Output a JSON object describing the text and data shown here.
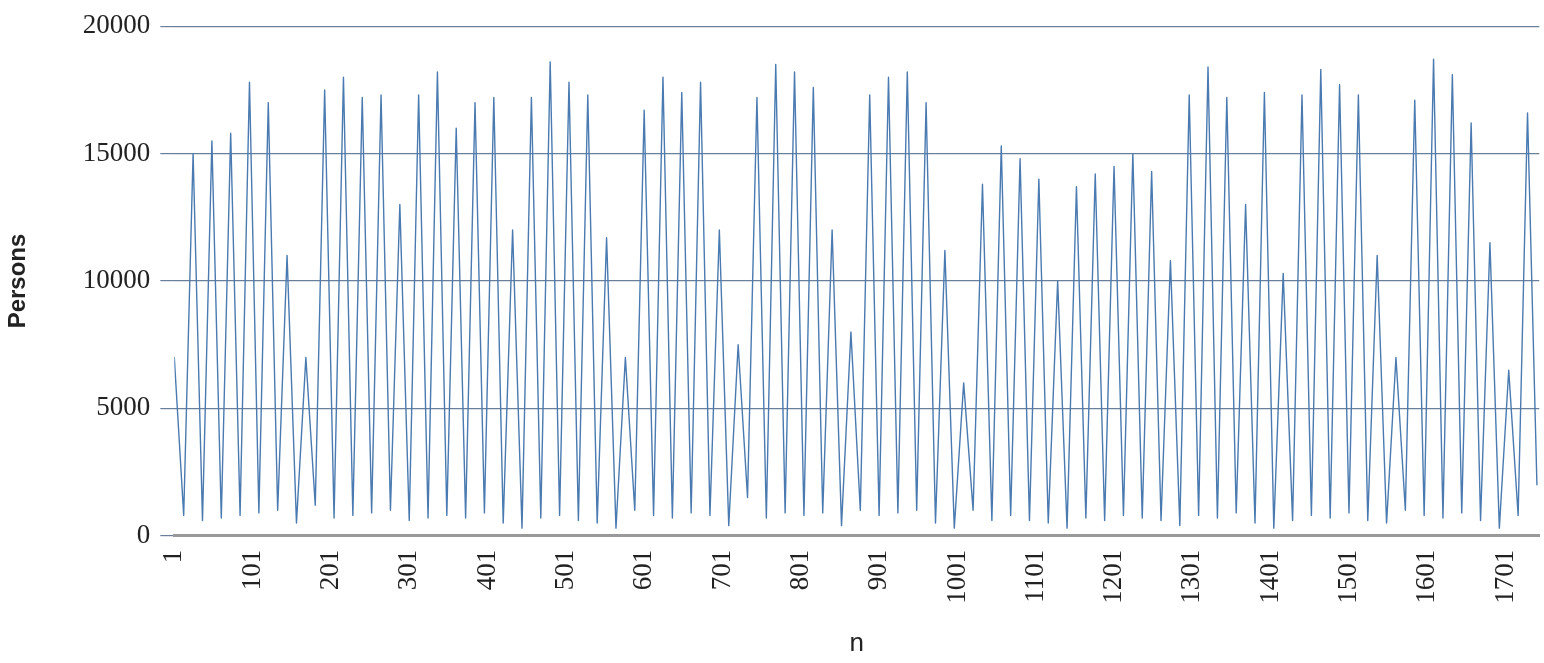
{
  "chart_data": {
    "type": "line",
    "xlabel": "n",
    "ylabel": "Persons",
    "color": "#4a7ab0",
    "marker": "none",
    "grid": "y",
    "legend": false,
    "xlim": [
      1,
      1744
    ],
    "xticks": [
      1,
      101,
      201,
      301,
      401,
      501,
      601,
      701,
      801,
      901,
      1001,
      1101,
      1201,
      1301,
      1401,
      1501,
      1601,
      1701
    ],
    "ylim": [
      0,
      20000
    ],
    "yticks": [
      0,
      5000,
      10000,
      15000,
      20000
    ],
    "x": [
      1,
      13,
      25,
      37,
      49,
      61,
      73,
      85,
      97,
      109,
      121,
      133,
      145,
      157,
      169,
      181,
      193,
      205,
      217,
      229,
      241,
      253,
      265,
      277,
      289,
      301,
      313,
      325,
      337,
      349,
      361,
      373,
      385,
      397,
      409,
      421,
      433,
      445,
      457,
      469,
      481,
      493,
      505,
      517,
      529,
      541,
      553,
      565,
      577,
      589,
      601,
      613,
      625,
      637,
      649,
      661,
      673,
      685,
      697,
      709,
      721,
      733,
      745,
      757,
      769,
      781,
      793,
      805,
      817,
      829,
      841,
      853,
      865,
      877,
      889,
      901,
      913,
      925,
      937,
      949,
      961,
      973,
      985,
      997,
      1009,
      1021,
      1033,
      1045,
      1057,
      1069,
      1081,
      1093,
      1105,
      1117,
      1129,
      1141,
      1153,
      1165,
      1177,
      1189,
      1201,
      1213,
      1225,
      1237,
      1249,
      1261,
      1273,
      1285,
      1297,
      1309,
      1321,
      1333,
      1345,
      1357,
      1369,
      1381,
      1393,
      1405,
      1417,
      1429,
      1441,
      1453,
      1465,
      1477,
      1489,
      1501,
      1513,
      1525,
      1537,
      1549,
      1561,
      1573,
      1585,
      1597,
      1609,
      1621,
      1633,
      1645,
      1657,
      1669,
      1681,
      1693,
      1705,
      1717,
      1729,
      1741
    ],
    "values": [
      7000,
      800,
      15000,
      600,
      15500,
      700,
      15800,
      800,
      17800,
      900,
      17000,
      1000,
      11000,
      500,
      7000,
      1200,
      17500,
      700,
      18000,
      800,
      17200,
      900,
      17300,
      1000,
      13000,
      600,
      17300,
      700,
      18200,
      800,
      16000,
      700,
      17000,
      900,
      17200,
      500,
      12000,
      300,
      17200,
      700,
      18600,
      800,
      17800,
      600,
      17300,
      500,
      11700,
      300,
      7000,
      1000,
      16700,
      800,
      18000,
      700,
      17400,
      900,
      17800,
      800,
      12000,
      400,
      7500,
      1500,
      17200,
      700,
      18500,
      900,
      18200,
      800,
      17600,
      900,
      12000,
      400,
      8000,
      1000,
      17300,
      800,
      18000,
      900,
      18200,
      1000,
      17000,
      500,
      11200,
      300,
      6000,
      1000,
      13800,
      600,
      15300,
      800,
      14800,
      600,
      14000,
      500,
      10000,
      300,
      13700,
      700,
      14200,
      600,
      14500,
      800,
      15000,
      700,
      14300,
      600,
      10800,
      400,
      17300,
      800,
      18400,
      700,
      17200,
      900,
      13000,
      500,
      17400,
      300,
      10300,
      600,
      17300,
      800,
      18300,
      700,
      17700,
      900,
      17300,
      600,
      11000,
      500,
      7000,
      1000,
      17100,
      800,
      18700,
      700,
      18100,
      900,
      16200,
      600,
      11500,
      300,
      6500,
      800,
      16600,
      2000
    ]
  }
}
